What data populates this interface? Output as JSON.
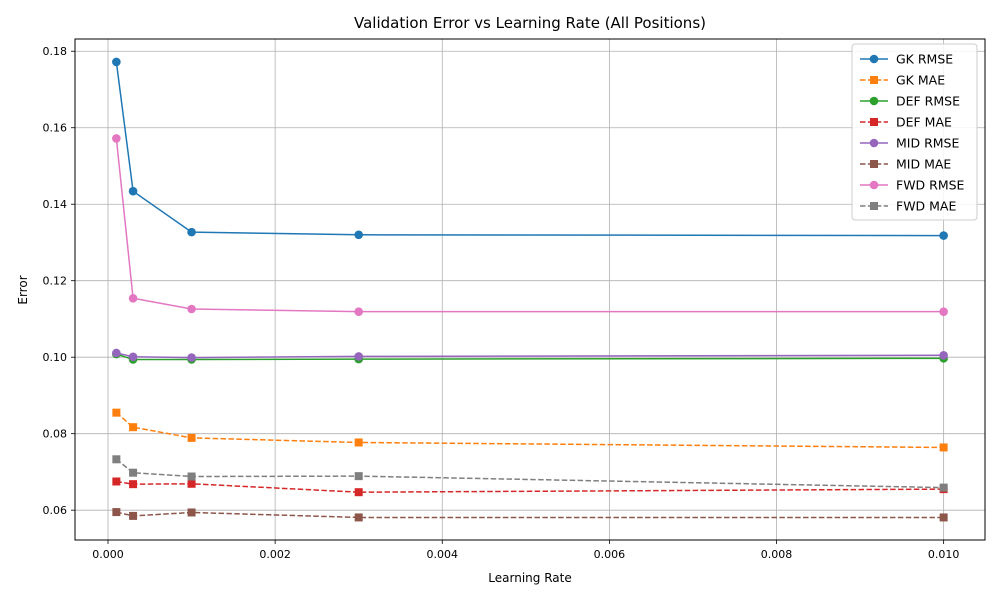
{
  "chart_data": {
    "type": "line",
    "title": "Validation Error vs Learning Rate (All Positions)",
    "xlabel": "Learning Rate",
    "ylabel": "Error",
    "x": [
      0.0001,
      0.0003,
      0.001,
      0.003,
      0.01
    ],
    "xlim": [
      -0.000395,
      0.010495
    ],
    "ylim": [
      0.0522,
      0.1832
    ],
    "xticks": [
      0.0,
      0.002,
      0.004,
      0.006,
      0.008,
      0.01
    ],
    "xtick_labels": [
      "0.000",
      "0.002",
      "0.004",
      "0.006",
      "0.008",
      "0.010"
    ],
    "yticks": [
      0.06,
      0.08,
      0.1,
      0.12,
      0.14,
      0.16,
      0.18
    ],
    "ytick_labels": [
      "0.06",
      "0.08",
      "0.10",
      "0.12",
      "0.14",
      "0.16",
      "0.18"
    ],
    "grid": true,
    "legend_position": "top-right",
    "series": [
      {
        "name": "GK RMSE",
        "color": "#1f77b4",
        "marker": "circle",
        "dashed": false,
        "values": [
          0.1772,
          0.1434,
          0.1327,
          0.132,
          0.1318
        ]
      },
      {
        "name": "GK MAE",
        "color": "#ff7f0e",
        "marker": "square",
        "dashed": true,
        "values": [
          0.0855,
          0.0817,
          0.0789,
          0.0777,
          0.0764
        ]
      },
      {
        "name": "DEF RMSE",
        "color": "#2ca02c",
        "marker": "circle",
        "dashed": false,
        "values": [
          0.1008,
          0.0994,
          0.0994,
          0.0995,
          0.0997
        ]
      },
      {
        "name": "DEF MAE",
        "color": "#d62728",
        "marker": "square",
        "dashed": true,
        "values": [
          0.0675,
          0.0668,
          0.0669,
          0.0647,
          0.0655
        ]
      },
      {
        "name": "MID RMSE",
        "color": "#9467bd",
        "marker": "circle",
        "dashed": false,
        "values": [
          0.1011,
          0.1001,
          0.0999,
          0.1002,
          0.1005
        ]
      },
      {
        "name": "MID MAE",
        "color": "#8c564b",
        "marker": "square",
        "dashed": true,
        "values": [
          0.0595,
          0.0585,
          0.0594,
          0.0581,
          0.0581
        ]
      },
      {
        "name": "FWD RMSE",
        "color": "#e377c2",
        "marker": "circle",
        "dashed": false,
        "values": [
          0.1572,
          0.1154,
          0.1126,
          0.1119,
          0.1119
        ]
      },
      {
        "name": "FWD MAE",
        "color": "#7f7f7f",
        "marker": "square",
        "dashed": true,
        "values": [
          0.0733,
          0.0698,
          0.0688,
          0.0689,
          0.0659
        ]
      }
    ]
  }
}
